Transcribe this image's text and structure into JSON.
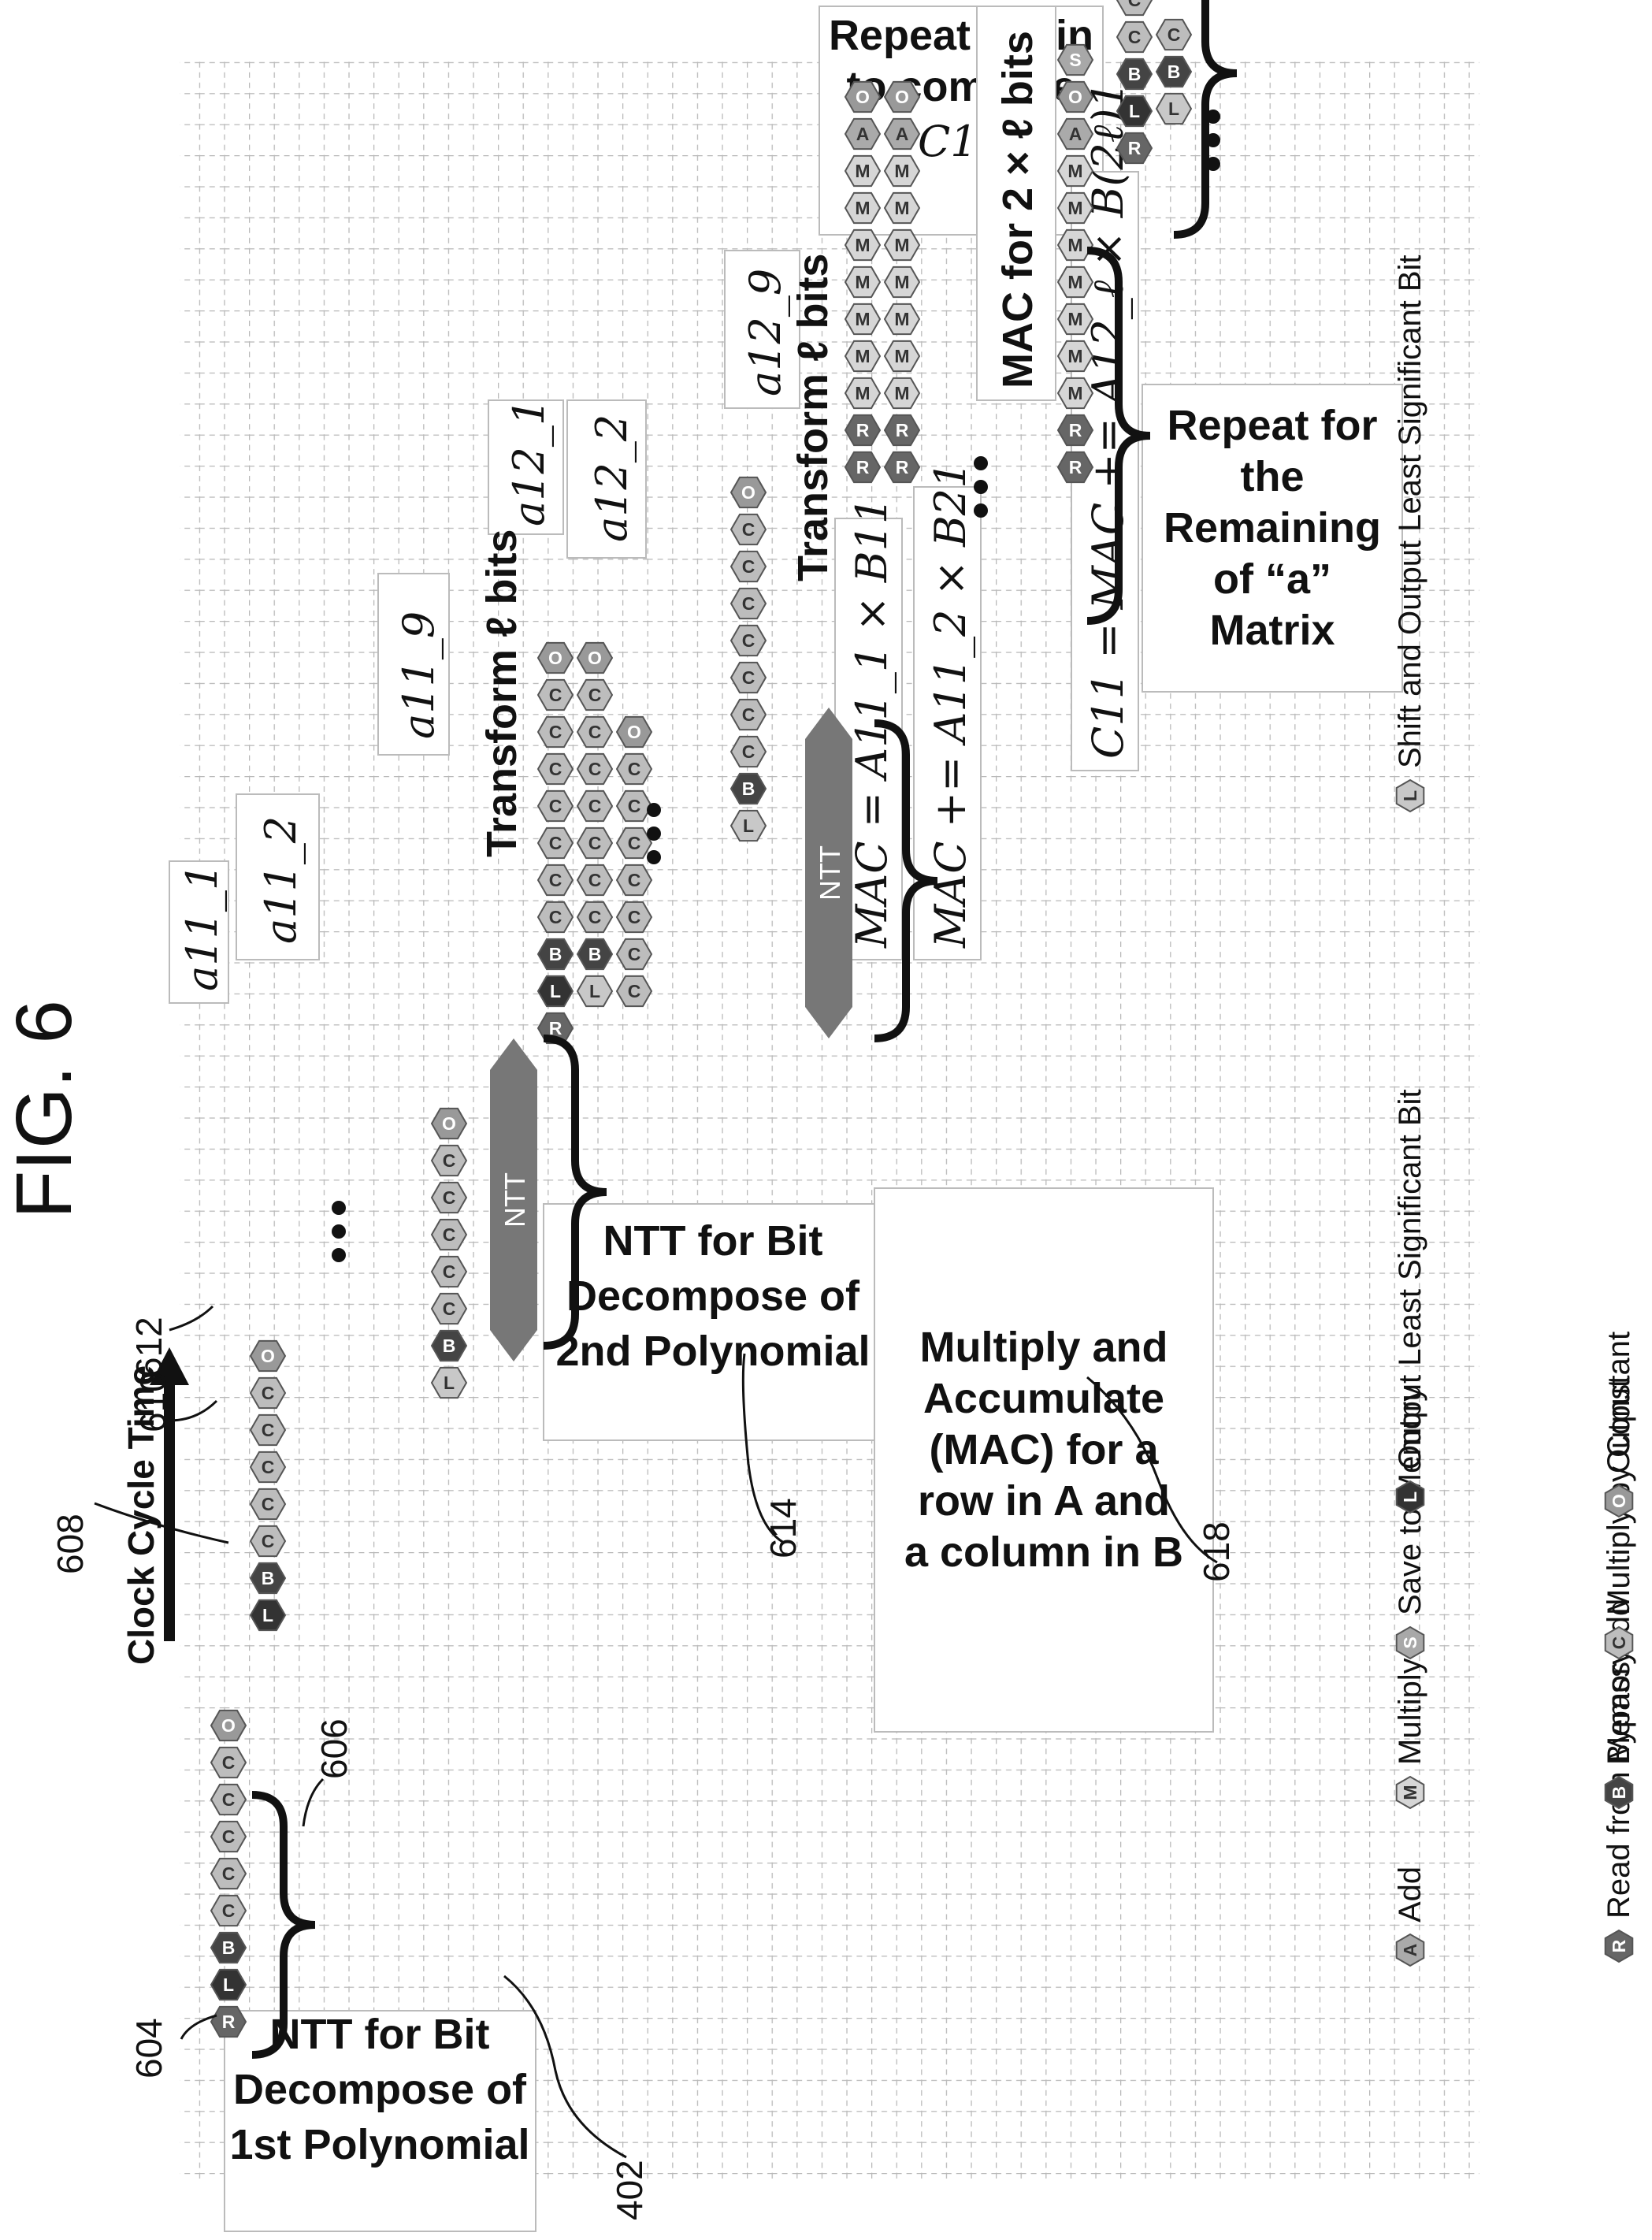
{
  "figure_label": "FIG. 6",
  "clock_label": "Clock Cycle Time",
  "annotations": {
    "ntt1": [
      "NTT for Bit",
      "Decompose of",
      "1st Polynomial"
    ],
    "ntt2": [
      "NTT for Bit",
      "Decompose of",
      "2nd Polynomial"
    ],
    "mac": [
      "Multiply and",
      "Accumulate",
      "(MAC) for a",
      "row in A and",
      "a column in B"
    ],
    "repeat_a": [
      "Repeat for",
      "the",
      "Remaining",
      "of “a”",
      "Matrix"
    ],
    "repeat_c": [
      "Repeat again",
      "to compute",
      "C12"
    ]
  },
  "texts": {
    "transform1": "Transform ℓ bits",
    "transform2": "Transform ℓ bits",
    "mac2": "MAC for 2 × ℓ bits",
    "ntt_block": "NTT",
    "a11_1": "a11_1",
    "a11_2": "a11_2",
    "a11_9": "a11_9",
    "a12_1": "a12_1",
    "a12_2": "a12_2",
    "a12_9": "a12_9",
    "eq1": "MAC = A11_1 × B11",
    "eq2": "MAC += A11_2 × B21",
    "eq3": "C11 = MAC += A12_ℓ × B(2ℓ)1"
  },
  "refs": {
    "r402": "402",
    "r604": "604",
    "r606": "606",
    "r608": "608",
    "r610": "610",
    "r612": "612",
    "r614": "614",
    "r618": "618"
  },
  "legend": [
    {
      "letter": "R",
      "label": "Read from Memory",
      "color": "#666666"
    },
    {
      "letter": "B",
      "label": "Bypass Add",
      "color": "#444444"
    },
    {
      "letter": "C",
      "label": "Multiply by Constant",
      "color": "#bdbdbd"
    },
    {
      "letter": "O",
      "label": "Output",
      "color": "#999999"
    },
    {
      "letter": "A",
      "label": "Add",
      "color": "#aaaaaa"
    },
    {
      "letter": "M",
      "label": "Multiply",
      "color": "#d6d6d6"
    },
    {
      "letter": "S",
      "label": "Save to Memory",
      "color": "#a8a8a8"
    },
    {
      "letter": "L",
      "label": "Output Least Significant Bit",
      "color": "#333333"
    },
    {
      "letter": "L",
      "label": "Shift and Output Least Significant Bit",
      "color": "#c8c8c8"
    }
  ]
}
